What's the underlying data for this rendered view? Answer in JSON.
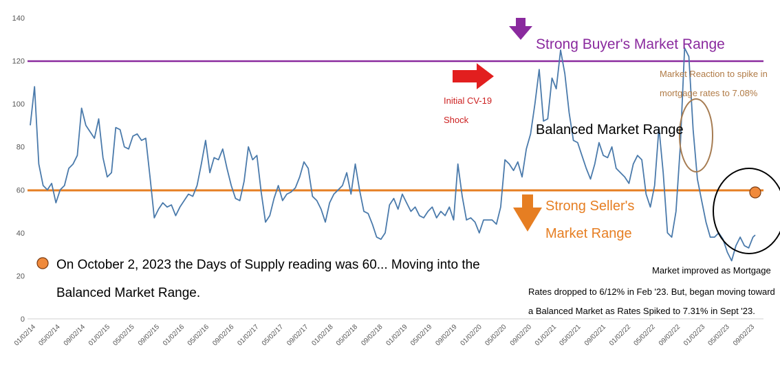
{
  "chart_data": {
    "type": "line",
    "title": "",
    "xlabel": "",
    "ylabel": "",
    "ylim": [
      0,
      140
    ],
    "yticks": [
      0,
      20,
      40,
      60,
      80,
      100,
      120,
      140
    ],
    "x_start": "2014-01-02",
    "x_end": "2023-10-02",
    "xtick_labels": [
      "01/02/14",
      "05/02/14",
      "09/02/14",
      "01/02/15",
      "05/02/15",
      "09/02/15",
      "01/02/16",
      "05/02/16",
      "09/02/16",
      "01/02/17",
      "05/02/17",
      "09/02/17",
      "01/02/18",
      "05/02/18",
      "09/02/18",
      "01/02/19",
      "05/02/19",
      "09/02/19",
      "01/02/20",
      "05/02/20",
      "09/02/20",
      "01/02/21",
      "05/02/21",
      "09/02/21",
      "01/02/22",
      "05/02/22",
      "09/02/22",
      "01/02/23",
      "05/02/23",
      "09/02/23"
    ],
    "grid": false,
    "line_color": "#4a7aab",
    "series": [
      {
        "values": [
          [
            "2014-01-02",
            90
          ],
          [
            "2014-01-23",
            108
          ],
          [
            "2014-02-13",
            72
          ],
          [
            "2014-03-06",
            62
          ],
          [
            "2014-03-27",
            60
          ],
          [
            "2014-04-17",
            63
          ],
          [
            "2014-05-08",
            54
          ],
          [
            "2014-05-29",
            60
          ],
          [
            "2014-06-19",
            62
          ],
          [
            "2014-07-10",
            70
          ],
          [
            "2014-07-31",
            72
          ],
          [
            "2014-08-21",
            76
          ],
          [
            "2014-09-11",
            98
          ],
          [
            "2014-10-02",
            90
          ],
          [
            "2014-10-23",
            87
          ],
          [
            "2014-11-13",
            84
          ],
          [
            "2014-12-04",
            93
          ],
          [
            "2014-12-25",
            75
          ],
          [
            "2015-01-15",
            66
          ],
          [
            "2015-02-05",
            68
          ],
          [
            "2015-02-26",
            89
          ],
          [
            "2015-03-19",
            88
          ],
          [
            "2015-04-09",
            80
          ],
          [
            "2015-04-30",
            79
          ],
          [
            "2015-05-21",
            85
          ],
          [
            "2015-06-11",
            86
          ],
          [
            "2015-07-02",
            83
          ],
          [
            "2015-07-23",
            84
          ],
          [
            "2015-08-13",
            66
          ],
          [
            "2015-09-03",
            47
          ],
          [
            "2015-09-24",
            51
          ],
          [
            "2015-10-15",
            54
          ],
          [
            "2015-11-05",
            52
          ],
          [
            "2015-11-26",
            53
          ],
          [
            "2015-12-17",
            48
          ],
          [
            "2016-01-07",
            52
          ],
          [
            "2016-01-28",
            55
          ],
          [
            "2016-02-18",
            58
          ],
          [
            "2016-03-10",
            57
          ],
          [
            "2016-03-31",
            62
          ],
          [
            "2016-04-21",
            72
          ],
          [
            "2016-05-12",
            83
          ],
          [
            "2016-06-02",
            68
          ],
          [
            "2016-06-23",
            75
          ],
          [
            "2016-07-14",
            74
          ],
          [
            "2016-08-04",
            79
          ],
          [
            "2016-08-25",
            70
          ],
          [
            "2016-09-15",
            62
          ],
          [
            "2016-10-06",
            56
          ],
          [
            "2016-10-27",
            55
          ],
          [
            "2016-11-17",
            64
          ],
          [
            "2016-12-08",
            80
          ],
          [
            "2016-12-29",
            74
          ],
          [
            "2017-01-19",
            76
          ],
          [
            "2017-02-09",
            59
          ],
          [
            "2017-03-02",
            45
          ],
          [
            "2017-03-23",
            48
          ],
          [
            "2017-04-13",
            56
          ],
          [
            "2017-05-04",
            62
          ],
          [
            "2017-05-25",
            55
          ],
          [
            "2017-06-15",
            58
          ],
          [
            "2017-07-06",
            59
          ],
          [
            "2017-07-27",
            61
          ],
          [
            "2017-08-17",
            66
          ],
          [
            "2017-09-07",
            73
          ],
          [
            "2017-09-28",
            70
          ],
          [
            "2017-10-19",
            57
          ],
          [
            "2017-11-09",
            55
          ],
          [
            "2017-11-30",
            51
          ],
          [
            "2017-12-21",
            45
          ],
          [
            "2018-01-11",
            54
          ],
          [
            "2018-02-01",
            58
          ],
          [
            "2018-02-22",
            60
          ],
          [
            "2018-03-15",
            62
          ],
          [
            "2018-04-05",
            68
          ],
          [
            "2018-04-26",
            58
          ],
          [
            "2018-05-17",
            72
          ],
          [
            "2018-06-07",
            60
          ],
          [
            "2018-06-28",
            50
          ],
          [
            "2018-07-19",
            49
          ],
          [
            "2018-08-09",
            44
          ],
          [
            "2018-08-30",
            38
          ],
          [
            "2018-09-20",
            37
          ],
          [
            "2018-10-11",
            40
          ],
          [
            "2018-11-01",
            53
          ],
          [
            "2018-11-22",
            56
          ],
          [
            "2018-12-13",
            51
          ],
          [
            "2019-01-03",
            58
          ],
          [
            "2019-01-24",
            54
          ],
          [
            "2019-02-14",
            50
          ],
          [
            "2019-03-07",
            52
          ],
          [
            "2019-03-28",
            48
          ],
          [
            "2019-04-18",
            47
          ],
          [
            "2019-05-09",
            50
          ],
          [
            "2019-05-30",
            52
          ],
          [
            "2019-06-20",
            47
          ],
          [
            "2019-07-11",
            50
          ],
          [
            "2019-08-01",
            48
          ],
          [
            "2019-08-22",
            52
          ],
          [
            "2019-09-12",
            46
          ],
          [
            "2019-10-03",
            72
          ],
          [
            "2019-10-24",
            57
          ],
          [
            "2019-11-14",
            46
          ],
          [
            "2019-12-05",
            47
          ],
          [
            "2019-12-26",
            45
          ],
          [
            "2020-01-16",
            40
          ],
          [
            "2020-02-06",
            46
          ],
          [
            "2020-02-27",
            46
          ],
          [
            "2020-03-19",
            46
          ],
          [
            "2020-04-09",
            44
          ],
          [
            "2020-04-30",
            52
          ],
          [
            "2020-05-21",
            74
          ],
          [
            "2020-06-11",
            72
          ],
          [
            "2020-07-02",
            69
          ],
          [
            "2020-07-23",
            73
          ],
          [
            "2020-08-13",
            66
          ],
          [
            "2020-09-03",
            79
          ],
          [
            "2020-09-24",
            86
          ],
          [
            "2020-10-15",
            100
          ],
          [
            "2020-11-05",
            116
          ],
          [
            "2020-11-26",
            92
          ],
          [
            "2020-12-17",
            93
          ],
          [
            "2021-01-07",
            112
          ],
          [
            "2021-01-28",
            107
          ],
          [
            "2021-02-18",
            125
          ],
          [
            "2021-03-11",
            114
          ],
          [
            "2021-04-01",
            96
          ],
          [
            "2021-04-22",
            83
          ],
          [
            "2021-05-13",
            82
          ],
          [
            "2021-06-03",
            76
          ],
          [
            "2021-06-24",
            70
          ],
          [
            "2021-07-15",
            65
          ],
          [
            "2021-08-05",
            72
          ],
          [
            "2021-08-26",
            82
          ],
          [
            "2021-09-16",
            76
          ],
          [
            "2021-10-07",
            75
          ],
          [
            "2021-10-28",
            80
          ],
          [
            "2021-11-18",
            70
          ],
          [
            "2021-12-09",
            68
          ],
          [
            "2021-12-30",
            66
          ],
          [
            "2022-01-20",
            63
          ],
          [
            "2022-02-10",
            72
          ],
          [
            "2022-03-03",
            76
          ],
          [
            "2022-03-24",
            74
          ],
          [
            "2022-04-14",
            58
          ],
          [
            "2022-05-05",
            52
          ],
          [
            "2022-05-26",
            62
          ],
          [
            "2022-06-16",
            89
          ],
          [
            "2022-07-07",
            68
          ],
          [
            "2022-07-28",
            40
          ],
          [
            "2022-08-18",
            38
          ],
          [
            "2022-09-08",
            50
          ],
          [
            "2022-09-29",
            80
          ],
          [
            "2022-10-20",
            126
          ],
          [
            "2022-11-10",
            122
          ],
          [
            "2022-12-01",
            88
          ],
          [
            "2022-12-22",
            65
          ],
          [
            "2023-01-12",
            55
          ],
          [
            "2023-02-02",
            45
          ],
          [
            "2023-02-23",
            38
          ],
          [
            "2023-03-16",
            38
          ],
          [
            "2023-04-06",
            40
          ],
          [
            "2023-04-27",
            37
          ],
          [
            "2023-05-18",
            31
          ],
          [
            "2023-06-08",
            27
          ],
          [
            "2023-06-29",
            34
          ],
          [
            "2023-07-20",
            38
          ],
          [
            "2023-08-10",
            34
          ],
          [
            "2023-08-31",
            33
          ],
          [
            "2023-09-21",
            38
          ],
          [
            "2023-10-02",
            39
          ]
        ]
      }
    ]
  }
}
